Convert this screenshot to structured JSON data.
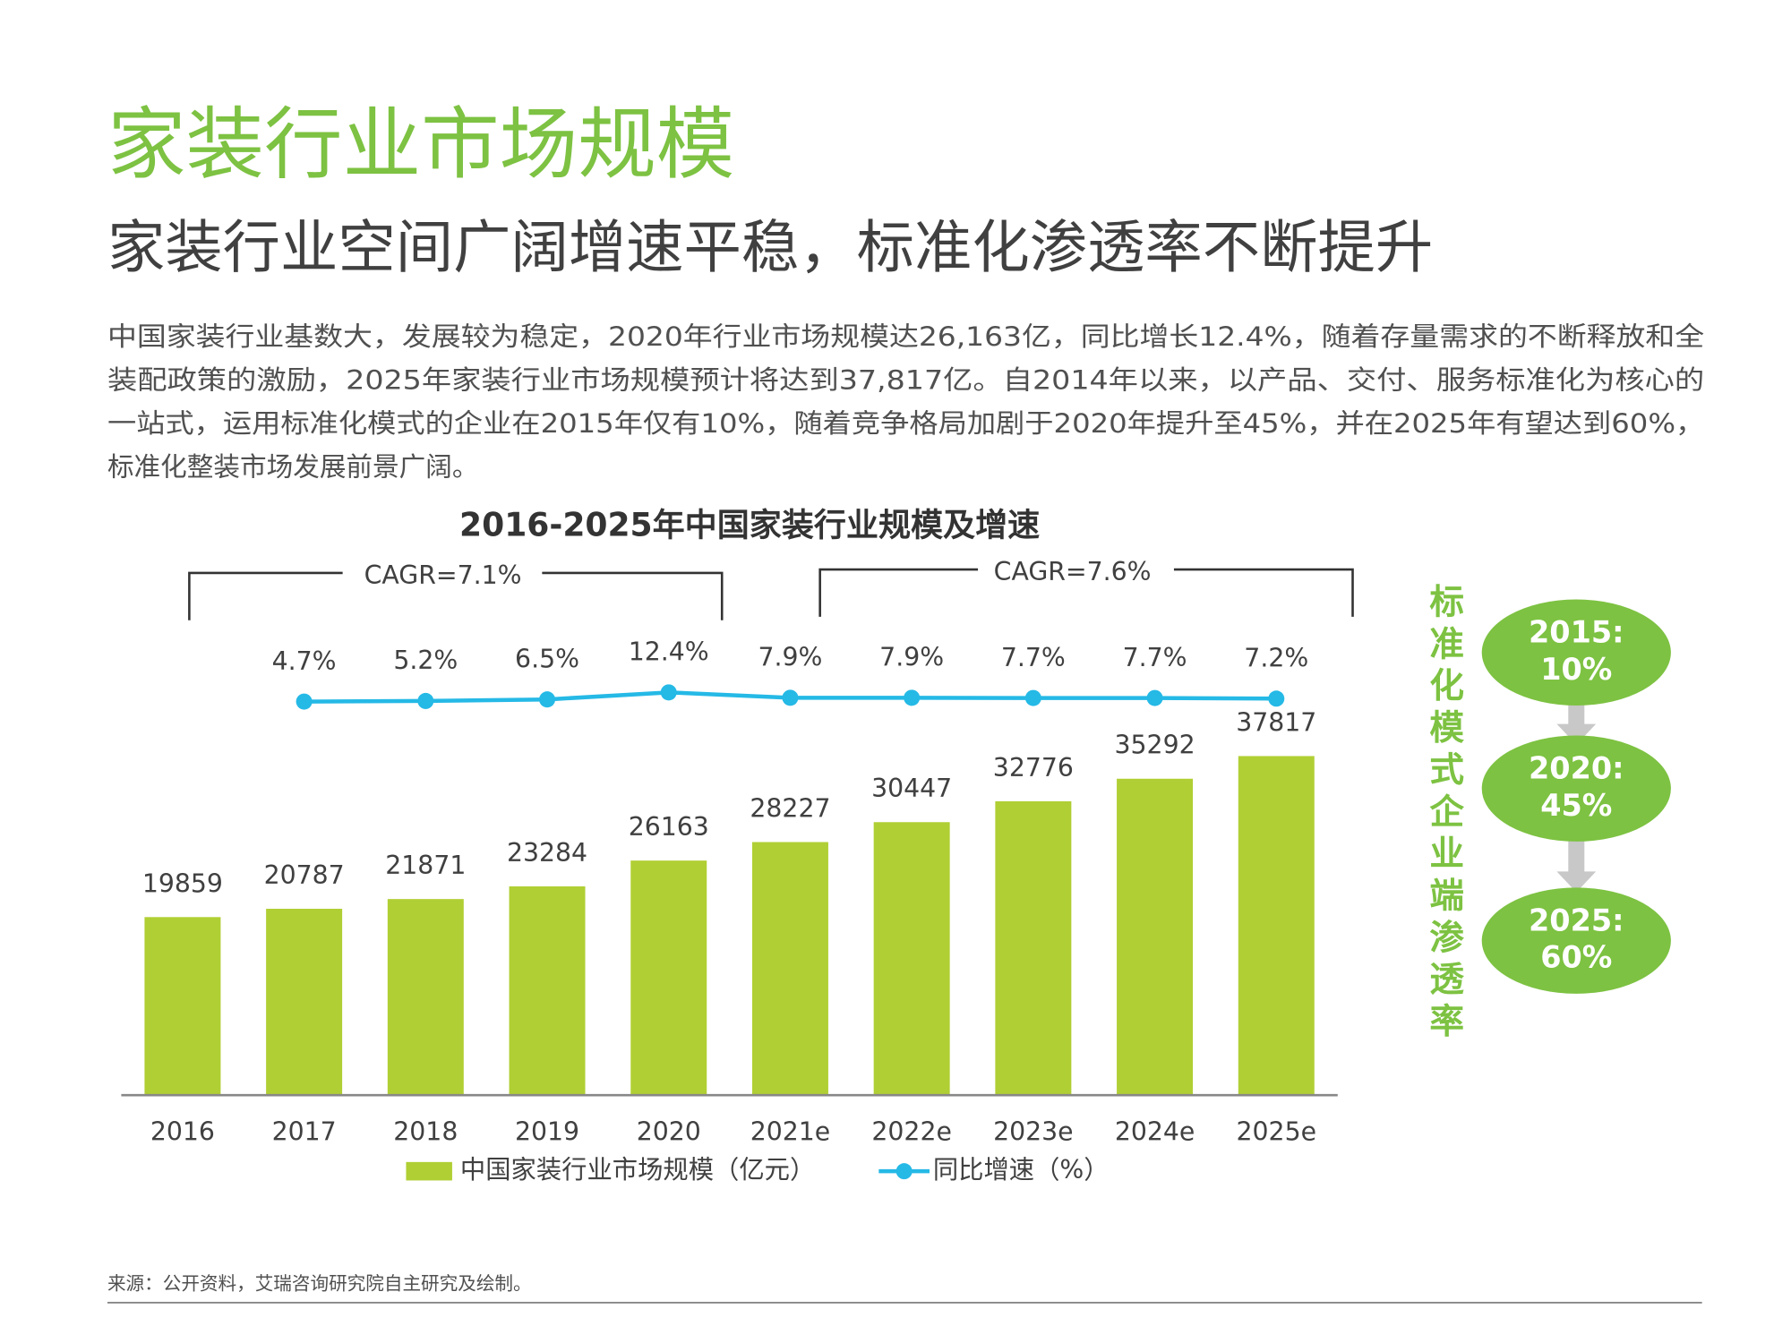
{
  "header": {
    "title": "家装行业市场规模",
    "subtitle": "家装行业空间广阔增速平稳，标准化渗透率不断提升"
  },
  "body": {
    "lines": [
      "中国家装行业基数大，发展较为稳定，2020年行业市场规模达26,163亿，同比增长12.4%，随着存量需求的不断释放和全",
      "装配政策的激励，2025年家装行业市场规模预计将达到37,817亿。自2014年以来，以产品、交付、服务标准化为核心的",
      "一站式，运用标准化模式的企业在2015年仅有10%，随着竞争格局加剧于2020年提升至45%，并在2025年有望达到60%，",
      "标准化整装市场发展前景广阔。"
    ]
  },
  "chart_data": {
    "type": "bar",
    "title": "2016-2025年中国家装行业规模及增速",
    "annotations": [
      "CAGR=7.1%",
      "CAGR=7.6%"
    ],
    "categories": [
      "2016",
      "2017",
      "2018",
      "2019",
      "2020",
      "2021e",
      "2022e",
      "2023e",
      "2024e",
      "2025e"
    ],
    "series": [
      {
        "name": "中国家装行业市场规模（亿元）",
        "color": "#b0cf34",
        "values": [
          19859,
          20787,
          21871,
          23284,
          26163,
          28227,
          30447,
          32776,
          35292,
          37817
        ]
      },
      {
        "name": "同比增速（%）",
        "color": "#25b9e6",
        "type": "line",
        "axis": "y2",
        "values": [
          null,
          4.7,
          5.2,
          6.5,
          12.4,
          7.9,
          7.9,
          7.7,
          7.7,
          7.2
        ],
        "value_labels": [
          null,
          "4.7%",
          "5.2%",
          "6.5%",
          "12.4%",
          "7.9%",
          "7.9%",
          "7.7%",
          "7.7%",
          "7.2%"
        ]
      }
    ],
    "ylim": [
      0,
      45000
    ],
    "y2lim": [
      -325,
      13
    ],
    "legend": "bottom"
  },
  "side_panel": {
    "title": "标准化模式企业端渗透率",
    "milestones": [
      {
        "year": "2015:",
        "share": "10%"
      },
      {
        "year": "2020:",
        "share": "45%"
      },
      {
        "year": "2025:",
        "share": "60%"
      }
    ]
  },
  "footer": {
    "source": "来源：公开资料，艾瑞咨询研究院自主研究及绘制。"
  }
}
